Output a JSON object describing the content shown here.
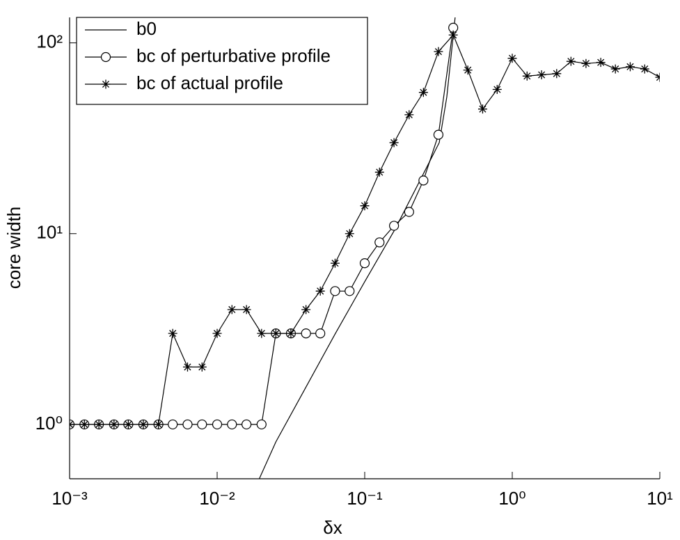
{
  "chart_data": {
    "type": "line",
    "x_label": "δx",
    "y_label": "core  width",
    "xscale": "log",
    "yscale": "log",
    "xlim": [
      0.001,
      10
    ],
    "ylim": [
      0.519,
      136
    ],
    "xticks": [
      {
        "value": 0.001,
        "label": "10⁻³"
      },
      {
        "value": 0.01,
        "label": "10⁻²"
      },
      {
        "value": 0.1,
        "label": "10⁻¹"
      },
      {
        "value": 1,
        "label": "10⁰"
      },
      {
        "value": 10,
        "label": "10¹"
      }
    ],
    "yticks": [
      {
        "value": 1,
        "label": "10⁰"
      },
      {
        "value": 10,
        "label": "10¹"
      },
      {
        "value": 100,
        "label": "10²"
      }
    ],
    "legend": "top-left",
    "series": [
      {
        "name": "b0",
        "color": "#000000",
        "marker": "none",
        "x": [
          0.0193,
          0.025,
          0.04,
          0.063,
          0.1,
          0.16,
          0.25,
          0.32,
          0.36,
          0.41
        ],
        "values": [
          0.519,
          0.81,
          1.57,
          2.98,
          5.6,
          10.5,
          20.6,
          30,
          52,
          136
        ]
      },
      {
        "name": "bc of perturbative profile",
        "color": "#000000",
        "marker": "circle",
        "x": [
          0.001,
          0.00126,
          0.00158,
          0.002,
          0.0025,
          0.00316,
          0.004,
          0.005,
          0.0063,
          0.0079,
          0.01,
          0.0126,
          0.0158,
          0.02,
          0.025,
          0.0316,
          0.04,
          0.05,
          0.063,
          0.079,
          0.1,
          0.126,
          0.158,
          0.2,
          0.25,
          0.316,
          0.398
        ],
        "values": [
          1,
          1,
          1,
          1,
          1,
          1,
          1,
          1,
          1,
          1,
          1,
          1,
          1,
          1,
          3,
          3,
          3,
          3,
          5,
          5,
          7,
          9,
          11,
          13,
          19,
          33,
          120
        ]
      },
      {
        "name": "bc of actual profile",
        "color": "#000000",
        "marker": "star",
        "x": [
          0.001,
          0.00126,
          0.00158,
          0.002,
          0.0025,
          0.00316,
          0.004,
          0.005,
          0.0063,
          0.0079,
          0.01,
          0.0126,
          0.0158,
          0.02,
          0.025,
          0.0316,
          0.04,
          0.05,
          0.063,
          0.079,
          0.1,
          0.126,
          0.158,
          0.2,
          0.25,
          0.316,
          0.398,
          0.5,
          0.63,
          0.79,
          1,
          1.26,
          1.58,
          2,
          2.5,
          3.16,
          3.98,
          5,
          6.3,
          7.9,
          10
        ],
        "values": [
          1,
          1,
          1,
          1,
          1,
          1,
          1,
          3,
          2,
          2,
          3,
          4,
          4,
          3,
          3,
          3,
          4,
          5,
          7,
          10,
          14,
          21,
          30,
          42,
          55,
          90,
          110,
          72,
          45,
          57,
          83,
          67,
          68,
          69,
          80,
          78,
          79,
          73,
          75,
          73,
          66
        ]
      }
    ]
  }
}
